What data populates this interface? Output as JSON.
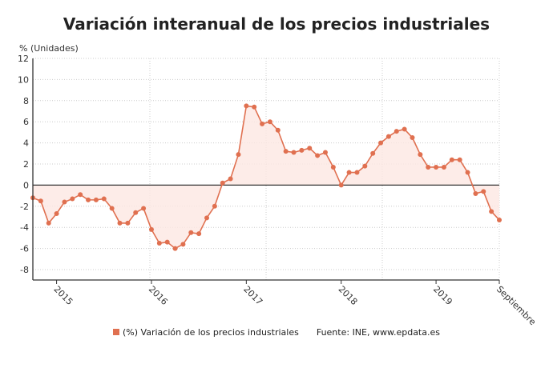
{
  "chart_data": {
    "type": "area",
    "title": "Variación interanual de los precios industriales",
    "ylabel": "% (Unidades)",
    "ylim": [
      -9,
      12
    ],
    "yticks": [
      12,
      10,
      8,
      6,
      4,
      2,
      0,
      -2,
      -4,
      -6,
      -8
    ],
    "x_start": "2014-10",
    "x_end": "2019-09",
    "xtick_labels": [
      {
        "label": "2015",
        "month": "2015-01"
      },
      {
        "label": "2016",
        "month": "2016-01"
      },
      {
        "label": "2017",
        "month": "2017-01"
      },
      {
        "label": "2018",
        "month": "2018-01"
      },
      {
        "label": "2019",
        "month": "2019-01"
      },
      {
        "label": "Septiembre",
        "month": "2019-09"
      }
    ],
    "grid": true,
    "legend_position": "bottom",
    "series": [
      {
        "name": "(%) Variación de los precios industriales",
        "color": "#e07050",
        "fill": "#fde7e2",
        "values": [
          -1.2,
          -1.5,
          -3.6,
          -2.7,
          -1.6,
          -1.3,
          -0.9,
          -1.4,
          -1.4,
          -1.3,
          -2.2,
          -3.6,
          -3.6,
          -2.6,
          -2.2,
          -4.2,
          -5.5,
          -5.4,
          -6.0,
          -5.6,
          -4.5,
          -4.6,
          -3.1,
          -2.0,
          0.2,
          0.6,
          2.9,
          7.5,
          7.4,
          5.8,
          6.0,
          5.2,
          3.2,
          3.1,
          3.3,
          3.5,
          2.8,
          3.1,
          1.7,
          0.0,
          1.2,
          1.2,
          1.8,
          3.0,
          4.0,
          4.6,
          5.1,
          5.3,
          4.5,
          2.9,
          1.7,
          1.7,
          1.7,
          2.4,
          2.4,
          1.2,
          -0.8,
          -0.6,
          -2.5,
          -3.3
        ]
      }
    ],
    "source": "Fuente: INE, www.epdata.es"
  }
}
